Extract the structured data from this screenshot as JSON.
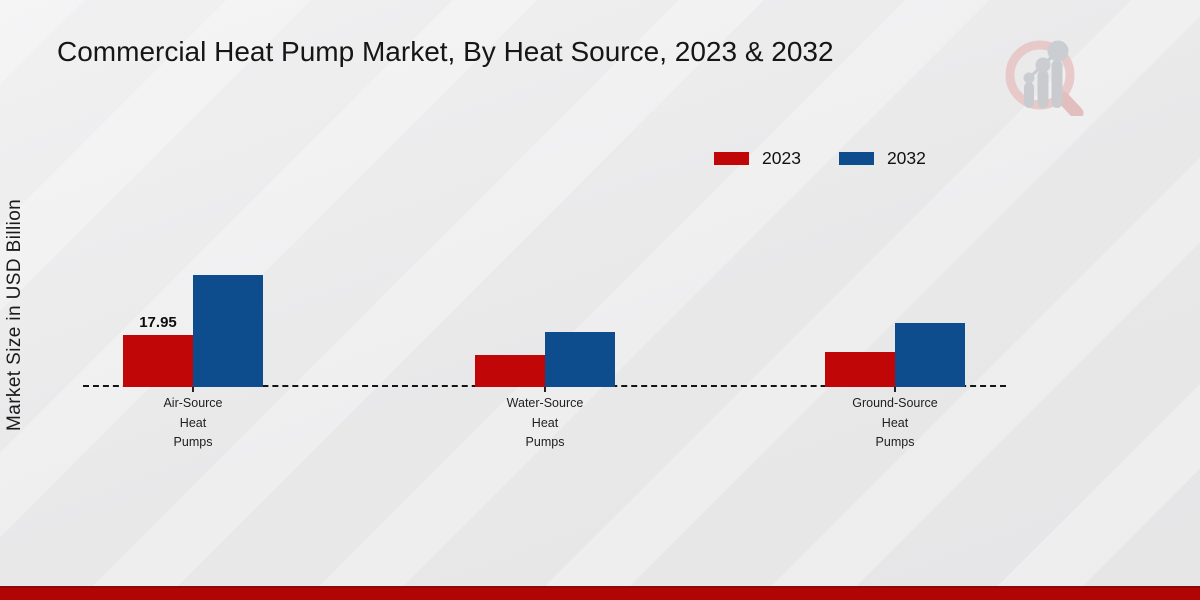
{
  "header": {
    "title": "Commercial Heat Pump Market, By Heat Source, 2023 & 2032"
  },
  "branding": {
    "logo": "magnifier-growth-chart-logo"
  },
  "colors": {
    "series_2023": "#c00606",
    "series_2032": "#0e4d8d",
    "baseline": "#151515",
    "bottom_band": "#b10404",
    "background": "#e9e9ea"
  },
  "chart_data": {
    "type": "bar",
    "title": "Commercial Heat Pump Market, By Heat Source, 2023 & 2032",
    "xlabel": "",
    "ylabel": "Market Size in USD Billion",
    "categories": [
      "Air-Source\nHeat\nPumps",
      "Water-Source\nHeat\nPumps",
      "Ground-Source\nHeat\nPumps"
    ],
    "series": [
      {
        "name": "2023",
        "color": "#c00606",
        "values": [
          17.95,
          11.0,
          12.1
        ]
      },
      {
        "name": "2032",
        "color": "#0e4d8d",
        "values": [
          38.7,
          19.0,
          22.1
        ]
      }
    ],
    "data_labels": [
      {
        "series": "2023",
        "category_index": 0,
        "text": "17.95"
      }
    ],
    "ylim": [
      0,
      40
    ],
    "grid": false,
    "axis_style": "dashed-baseline-only",
    "legend_position": "top-right"
  }
}
